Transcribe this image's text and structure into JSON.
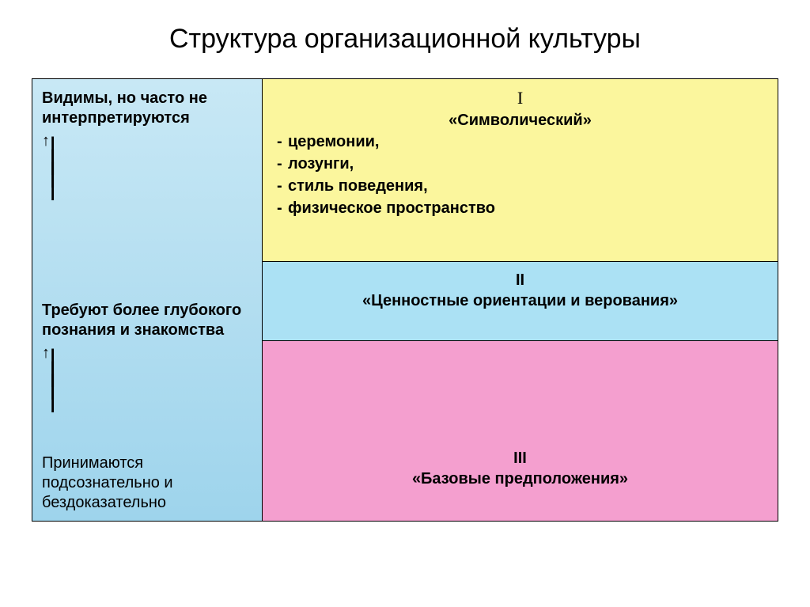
{
  "title": "Структура организационной культуры",
  "colors": {
    "left_gradient_top": "#c8e8f5",
    "left_gradient_bottom": "#9ed4ec",
    "level1_bg": "#fbf69d",
    "level2_bg": "#abe1f4",
    "level3_bg": "#f49fcf",
    "border": "#000000",
    "text": "#000000"
  },
  "typography": {
    "title_fontsize": 34,
    "body_fontsize": 20,
    "title_weight": "400",
    "body_weight_bold": "700"
  },
  "left_column": {
    "label1": "Видимы, но часто не интерпретируются",
    "label2": "Требуют более глубокого познания и знакомства",
    "label3": "Принимаются подсознательно и бездоказательно",
    "arrow_glyph_head": "↑",
    "arrow_glyph_shaft": "│"
  },
  "levels": [
    {
      "numeral": "I",
      "name": "«Символический»",
      "items": [
        "церемонии,",
        "лозунги,",
        "стиль поведения,",
        "физическое пространство"
      ]
    },
    {
      "numeral": "II",
      "name": "«Ценностные ориентации и верования»",
      "items": []
    },
    {
      "numeral": "III",
      "name": "«Базовые предположения»",
      "items": []
    }
  ]
}
